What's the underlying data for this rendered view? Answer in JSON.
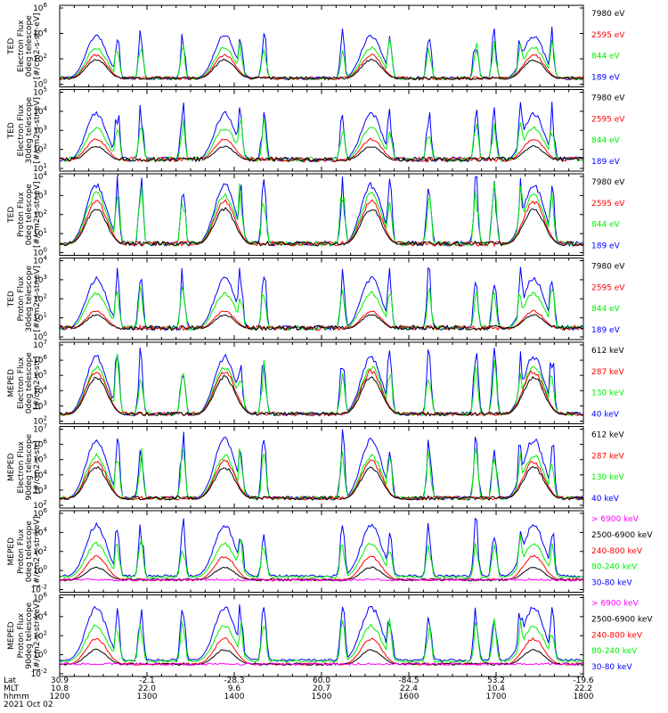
{
  "panels": [
    {
      "instrument": "TED",
      "quantity": "Electron Flux",
      "telescope": "0deg telescope",
      "units": "[#/cm2-s-str-eV]",
      "yticks": [
        {
          "label": "10",
          "exp": "6"
        },
        {
          "label": "10",
          "exp": "4"
        },
        {
          "label": "10",
          "exp": "2"
        },
        {
          "label": "10",
          "exp": "0"
        }
      ],
      "legend": [
        {
          "text": "7980 eV",
          "color": "#000000"
        },
        {
          "text": "2595 eV",
          "color": "#ff0000"
        },
        {
          "text": "844 eV",
          "color": "#00ee00"
        },
        {
          "text": "189 eV",
          "color": "#0000ff"
        }
      ]
    },
    {
      "instrument": "TED",
      "quantity": "Electron Flux",
      "telescope": "30deg telescope",
      "units": "[#/cm2-s-str-eV]",
      "yticks": [
        {
          "label": "10",
          "exp": "5"
        },
        {
          "label": "10",
          "exp": "4"
        },
        {
          "label": "10",
          "exp": "3"
        },
        {
          "label": "10",
          "exp": "2"
        },
        {
          "label": "10",
          "exp": "1"
        }
      ],
      "legend": [
        {
          "text": "7980 eV",
          "color": "#000000"
        },
        {
          "text": "2595 eV",
          "color": "#ff0000"
        },
        {
          "text": "844 eV",
          "color": "#00ee00"
        },
        {
          "text": "189 eV",
          "color": "#0000ff"
        }
      ]
    },
    {
      "instrument": "TED",
      "quantity": "Proton Flux",
      "telescope": "0deg telescope",
      "units": "[#/cm2-s-str-eV]",
      "yticks": [
        {
          "label": "10",
          "exp": "4"
        },
        {
          "label": "10",
          "exp": "3"
        },
        {
          "label": "10",
          "exp": "2"
        },
        {
          "label": "10",
          "exp": "1"
        },
        {
          "label": "10",
          "exp": "0"
        }
      ],
      "legend": [
        {
          "text": "7980 eV",
          "color": "#000000"
        },
        {
          "text": "2595 eV",
          "color": "#ff0000"
        },
        {
          "text": "844 eV",
          "color": "#00ee00"
        },
        {
          "text": "189 eV",
          "color": "#0000ff"
        }
      ]
    },
    {
      "instrument": "TED",
      "quantity": "Proton Flux",
      "telescope": "30deg telescope",
      "units": "[#/cm2-s-str-eV]",
      "yticks": [
        {
          "label": "10",
          "exp": "4"
        },
        {
          "label": "10",
          "exp": "3"
        },
        {
          "label": "10",
          "exp": "2"
        },
        {
          "label": "10",
          "exp": "1"
        },
        {
          "label": "10",
          "exp": "0"
        }
      ],
      "legend": [
        {
          "text": "7980 eV",
          "color": "#000000"
        },
        {
          "text": "2595 eV",
          "color": "#ff0000"
        },
        {
          "text": "844 eV",
          "color": "#00ee00"
        },
        {
          "text": "189 eV",
          "color": "#0000ff"
        }
      ]
    },
    {
      "instrument": "MEPED",
      "quantity": "Electron Flux",
      "telescope": "0deg telescope",
      "units": "[#/cm2-s-str]",
      "yticks": [
        {
          "label": "10",
          "exp": "7"
        },
        {
          "label": "10",
          "exp": "6"
        },
        {
          "label": "10",
          "exp": "5"
        },
        {
          "label": "10",
          "exp": "4"
        },
        {
          "label": "10",
          "exp": "3"
        },
        {
          "label": "10",
          "exp": "2"
        }
      ],
      "legend": [
        {
          "text": "612 keV",
          "color": "#000000"
        },
        {
          "text": "287 keV",
          "color": "#ff0000"
        },
        {
          "text": "130 keV",
          "color": "#00ee00"
        },
        {
          "text": "40 keV",
          "color": "#0000ff"
        }
      ]
    },
    {
      "instrument": "MEPED",
      "quantity": "Electron Flux",
      "telescope": "90deg telescope",
      "units": "[#/cm2-s-str]",
      "yticks": [
        {
          "label": "10",
          "exp": "7"
        },
        {
          "label": "10",
          "exp": "6"
        },
        {
          "label": "10",
          "exp": "5"
        },
        {
          "label": "10",
          "exp": "4"
        },
        {
          "label": "10",
          "exp": "3"
        },
        {
          "label": "10",
          "exp": "2"
        }
      ],
      "legend": [
        {
          "text": "612 keV",
          "color": "#000000"
        },
        {
          "text": "287 keV",
          "color": "#ff0000"
        },
        {
          "text": "130 keV",
          "color": "#00ee00"
        },
        {
          "text": "40 keV",
          "color": "#0000ff"
        }
      ]
    },
    {
      "instrument": "MEPED",
      "quantity": "Proton Flux",
      "telescope": "0deg telescope",
      "units": "[#/cm2-s-str-keV]",
      "yticks": [
        {
          "label": "10",
          "exp": "6"
        },
        {
          "label": "10",
          "exp": "4"
        },
        {
          "label": "10",
          "exp": "2"
        },
        {
          "label": "10",
          "exp": "0"
        },
        {
          "label": "10",
          "exp": "-2"
        }
      ],
      "legend": [
        {
          "text": "> 6900 keV",
          "color": "#ff00ff"
        },
        {
          "text": "2500-6900 keV",
          "color": "#000000"
        },
        {
          "text": "240-800 keV",
          "color": "#ff0000"
        },
        {
          "text": "80-240 keV",
          "color": "#00ee00"
        },
        {
          "text": "30-80 keV",
          "color": "#0000ff"
        }
      ]
    },
    {
      "instrument": "MEPED",
      "quantity": "Proton Flux",
      "telescope": "90deg telescope",
      "units": "[#/cm2-s-str-keV]",
      "yticks": [
        {
          "label": "10",
          "exp": "6"
        },
        {
          "label": "10",
          "exp": "4"
        },
        {
          "label": "10",
          "exp": "2"
        },
        {
          "label": "10",
          "exp": "0"
        },
        {
          "label": "10",
          "exp": "-2"
        }
      ],
      "legend": [
        {
          "text": "> 6900 keV",
          "color": "#ff00ff"
        },
        {
          "text": "2500-6900 keV",
          "color": "#000000"
        },
        {
          "text": "240-800 keV",
          "color": "#ff0000"
        },
        {
          "text": "80-240 keV",
          "color": "#00ee00"
        },
        {
          "text": "30-80 keV",
          "color": "#0000ff"
        }
      ]
    }
  ],
  "footer": {
    "row_labels": [
      "Lat",
      "MLT",
      "hhmm",
      "2021 Oct 02"
    ],
    "lat": [
      "30.9",
      "-2.1",
      "-28.3",
      "60.0",
      "-84.5",
      "53.2",
      "-19.6"
    ],
    "mlt": [
      "10.8",
      "22.0",
      "9.6",
      "20.7",
      "22.4",
      "10.4",
      "22.2"
    ],
    "hhmm": [
      "1200",
      "1300",
      "1400",
      "1500",
      "1600",
      "1700",
      "1800"
    ]
  },
  "chart_data": {
    "type": "line",
    "x": [
      "1200",
      "1300",
      "1400",
      "1500",
      "1600",
      "1700",
      "1800"
    ],
    "xlabel": "hhmm",
    "date": "2021 Oct 02",
    "ylog": true,
    "grid": false,
    "legend_position": "right",
    "panels": [
      {
        "ylabel": "TED Electron Flux 0deg telescope [#/cm2-s-str-eV]",
        "ylim_exp": [
          0,
          6
        ],
        "series": [
          {
            "name": "7980 eV",
            "peak_exp": 2.0
          },
          {
            "name": "2595 eV",
            "peak_exp": 2.4
          },
          {
            "name": "844 eV",
            "peak_exp": 3.0
          },
          {
            "name": "189 eV",
            "peak_exp": 4.0
          }
        ]
      },
      {
        "ylabel": "TED Electron Flux 30deg telescope [#/cm2-s-str-eV]",
        "ylim_exp": [
          1,
          5
        ],
        "series": [
          {
            "name": "7980 eV",
            "peak_exp": 2.2
          },
          {
            "name": "2595 eV",
            "peak_exp": 2.6
          },
          {
            "name": "844 eV",
            "peak_exp": 3.2
          },
          {
            "name": "189 eV",
            "peak_exp": 4.0
          }
        ]
      },
      {
        "ylabel": "TED Proton Flux 0deg telescope [#/cm2-s-str-eV]",
        "ylim_exp": [
          0,
          4
        ],
        "series": [
          {
            "name": "7980 eV",
            "peak_exp": 2.4
          },
          {
            "name": "2595 eV",
            "peak_exp": 2.8
          },
          {
            "name": "844 eV",
            "peak_exp": 3.2
          },
          {
            "name": "189 eV",
            "peak_exp": 3.7
          }
        ]
      },
      {
        "ylabel": "TED Proton Flux 30deg telescope [#/cm2-s-str-eV]",
        "ylim_exp": [
          0,
          4
        ],
        "series": [
          {
            "name": "7980 eV",
            "peak_exp": 1.2
          },
          {
            "name": "2595 eV",
            "peak_exp": 1.4
          },
          {
            "name": "844 eV",
            "peak_exp": 2.4
          },
          {
            "name": "189 eV",
            "peak_exp": 3.2
          }
        ]
      },
      {
        "ylabel": "MEPED Electron Flux 0deg telescope [#/cm2-s-str]",
        "ylim_exp": [
          2,
          7
        ],
        "series": [
          {
            "name": "612 keV",
            "peak_exp": 5.0
          },
          {
            "name": "287 keV",
            "peak_exp": 5.4
          },
          {
            "name": "130 keV",
            "peak_exp": 5.7
          },
          {
            "name": "40 keV",
            "peak_exp": 6.4
          }
        ]
      },
      {
        "ylabel": "MEPED Electron Flux 90deg telescope [#/cm2-s-str]",
        "ylim_exp": [
          2,
          7
        ],
        "series": [
          {
            "name": "612 keV",
            "peak_exp": 4.6
          },
          {
            "name": "287 keV",
            "peak_exp": 5.0
          },
          {
            "name": "130 keV",
            "peak_exp": 5.4
          },
          {
            "name": "40 keV",
            "peak_exp": 6.5
          }
        ]
      },
      {
        "ylabel": "MEPED Proton Flux 0deg telescope [#/cm2-s-str-keV]",
        "ylim_exp": [
          -2,
          6
        ],
        "series": [
          {
            "name": "> 6900 keV",
            "peak_exp": -1.0
          },
          {
            "name": "2500-6900 keV",
            "peak_exp": 0.4
          },
          {
            "name": "240-800 keV",
            "peak_exp": 1.6
          },
          {
            "name": "80-240 keV",
            "peak_exp": 3.0
          },
          {
            "name": "30-80 keV",
            "peak_exp": 5.0
          }
        ]
      },
      {
        "ylabel": "MEPED Proton Flux 90deg telescope [#/cm2-s-str-keV]",
        "ylim_exp": [
          -2,
          6
        ],
        "series": [
          {
            "name": "> 6900 keV",
            "peak_exp": -1.0
          },
          {
            "name": "2500-6900 keV",
            "peak_exp": 0.6
          },
          {
            "name": "240-800 keV",
            "peak_exp": 1.8
          },
          {
            "name": "80-240 keV",
            "peak_exp": 3.2
          },
          {
            "name": "30-80 keV",
            "peak_exp": 5.2
          }
        ]
      }
    ]
  }
}
